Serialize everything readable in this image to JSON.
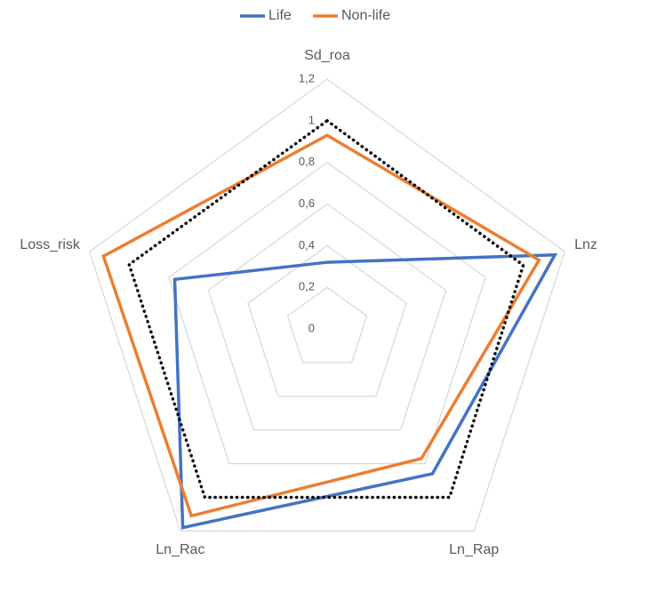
{
  "chart_data": {
    "type": "radar",
    "categories": [
      "Sd_roa",
      "Lnz",
      "Ln_Rap",
      "Ln_Rac",
      "Loss_risk"
    ],
    "series": [
      {
        "name": "Life",
        "color": "#4472c4",
        "values": [
          0.32,
          1.15,
          0.86,
          1.18,
          0.77
        ]
      },
      {
        "name": "Non-life",
        "color": "#ed7d31",
        "values": [
          0.93,
          1.07,
          0.77,
          1.11,
          1.13
        ]
      },
      {
        "color": "#000000",
        "line_style": "dotted",
        "values": [
          1,
          0.99,
          1,
          1,
          1
        ]
      }
    ],
    "ylim": [
      0,
      1.2
    ],
    "yticks": [
      0,
      {
        "value": 0.2,
        "label": "0,2"
      },
      {
        "value": 0.4,
        "label": "0,4"
      },
      {
        "value": 0.6,
        "label": "0,6"
      },
      {
        "value": 0.8,
        "label": "0,8"
      },
      1,
      {
        "value": 1.2,
        "label": "1,2"
      }
    ],
    "grid": true,
    "legend": "top"
  }
}
